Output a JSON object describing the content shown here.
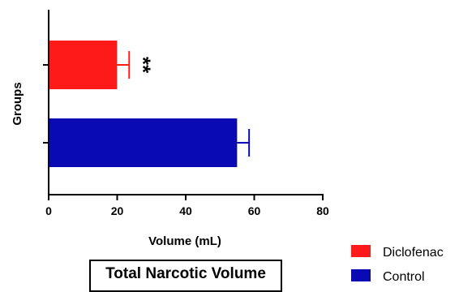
{
  "chart_data": {
    "type": "bar",
    "orientation": "horizontal",
    "title": "Total Narcotic Volume",
    "xlabel": "Volume (mL)",
    "ylabel": "Groups",
    "xlim": [
      0,
      80
    ],
    "xticks": [
      "0",
      "20",
      "40",
      "60",
      "80"
    ],
    "categories": [
      "Diclofenac",
      "Control"
    ],
    "values": [
      20,
      55
    ],
    "errors": [
      3.5,
      3.5
    ],
    "colors": [
      "#ff1a1a",
      "#0a0ab4"
    ],
    "annotations": [
      {
        "category": "Diclofenac",
        "text": "**"
      }
    ],
    "legend": {
      "position": "bottom-right",
      "entries": [
        {
          "label": "Diclofenac",
          "color": "#ff1a1a"
        },
        {
          "label": "Control",
          "color": "#0a0ab4"
        }
      ]
    },
    "grid": false
  }
}
